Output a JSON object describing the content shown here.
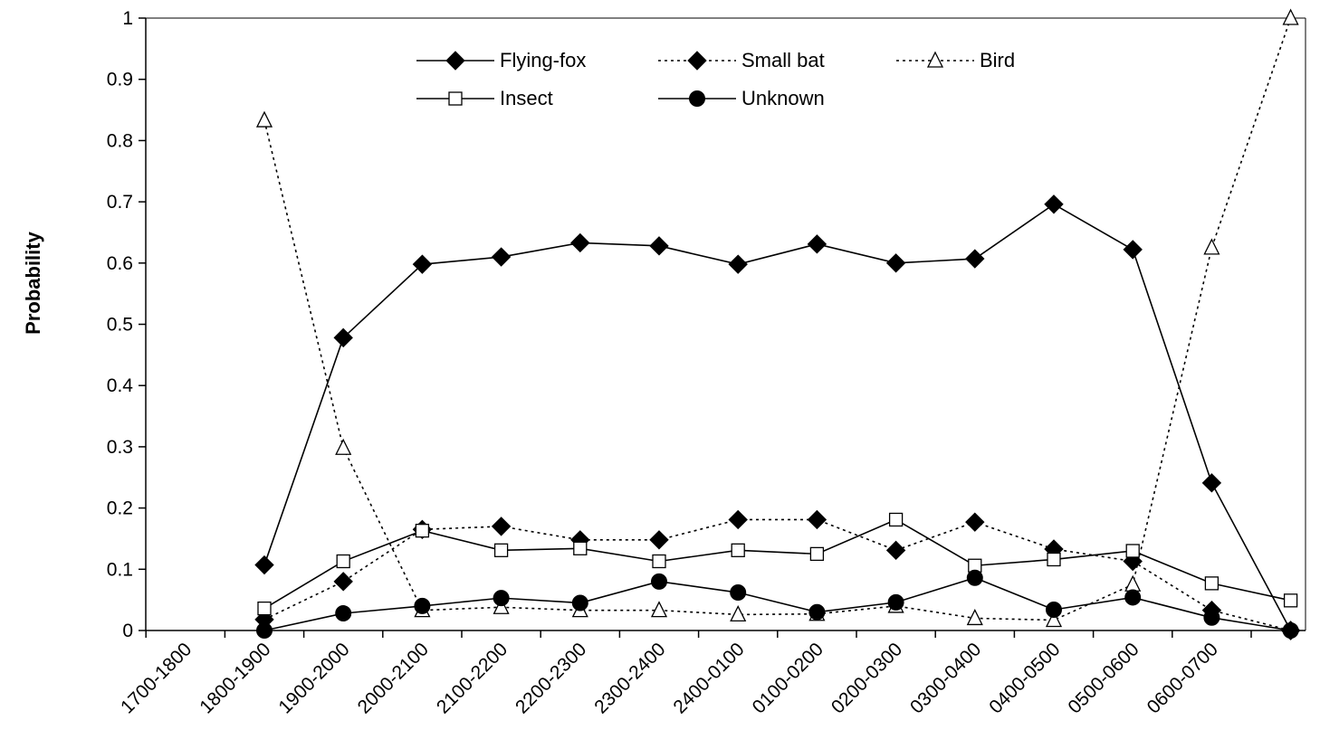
{
  "chart_data": {
    "type": "line",
    "title": "",
    "xlabel": "",
    "ylabel": "Probability",
    "ylim": [
      0,
      1
    ],
    "yticks": [
      "0",
      "0.1",
      "0.2",
      "0.3",
      "0.4",
      "0.5",
      "0.6",
      "0.7",
      "0.8",
      "0.9",
      "1"
    ],
    "grid": false,
    "legend_position": "top-center",
    "categories": [
      "1700-1800",
      "1800-1900",
      "1900-2000",
      "2000-2100",
      "2100-2200",
      "2200-2300",
      "2300-2400",
      "2400-0100",
      "0100-0200",
      "0200-0300",
      "0300-0400",
      "0400-0500",
      "0500-0600",
      "0600-0700"
    ],
    "series": [
      {
        "name": "Flying-fox",
        "line": "solid",
        "marker": "diamond-filled",
        "values": [
          0.107,
          0.478,
          0.598,
          0.61,
          0.633,
          0.628,
          0.598,
          0.631,
          0.6,
          0.607,
          0.696,
          0.622,
          0.241,
          0.0
        ]
      },
      {
        "name": "Small bat",
        "line": "dotted",
        "marker": "diamond-filled",
        "values": [
          0.018,
          0.08,
          0.165,
          0.17,
          0.148,
          0.148,
          0.181,
          0.181,
          0.131,
          0.177,
          0.133,
          0.113,
          0.033,
          0.0
        ]
      },
      {
        "name": "Bird",
        "line": "dotted",
        "marker": "triangle-open",
        "values": [
          0.833,
          0.298,
          0.033,
          0.038,
          0.033,
          0.033,
          0.026,
          0.027,
          0.04,
          0.02,
          0.017,
          0.075,
          0.625,
          1.0
        ]
      },
      {
        "name": "Insect",
        "line": "solid",
        "marker": "square-open",
        "values": [
          0.036,
          0.113,
          0.163,
          0.131,
          0.134,
          0.113,
          0.131,
          0.125,
          0.181,
          0.106,
          0.116,
          0.13,
          0.077,
          0.049
        ]
      },
      {
        "name": "Unknown",
        "line": "solid",
        "marker": "circle-filled",
        "values": [
          0.0,
          0.028,
          0.04,
          0.053,
          0.045,
          0.08,
          0.062,
          0.03,
          0.046,
          0.086,
          0.034,
          0.054,
          0.021,
          0.0
        ]
      }
    ]
  }
}
